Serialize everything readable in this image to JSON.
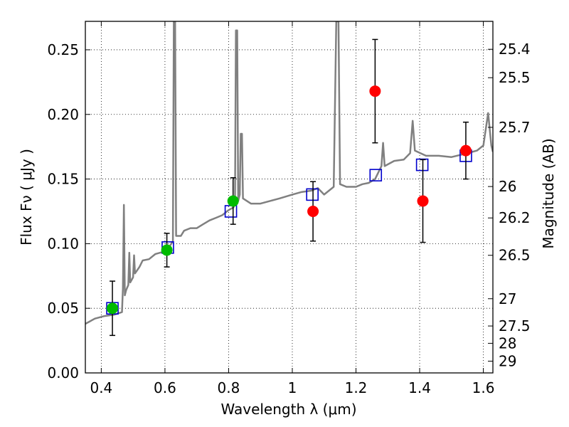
{
  "chart_data": {
    "type": "scatter",
    "title": "",
    "xlabel": "Wavelength  λ (μm)",
    "ylabel": "Flux  Fν  ( μJy )",
    "ylabel_right": "Magnitude (AB)",
    "xlim": [
      0.35,
      1.63
    ],
    "ylim": [
      0.0,
      0.272
    ],
    "grid": true,
    "x_ticks": [
      0.4,
      0.6,
      0.8,
      1,
      1.2,
      1.4,
      1.6
    ],
    "x_tick_labels": [
      "0.4",
      "0.6",
      "0.8",
      "1",
      "1.2",
      "1.4",
      "1.6"
    ],
    "y_ticks": [
      0.0,
      0.05,
      0.1,
      0.15,
      0.2,
      0.25
    ],
    "y_tick_labels": [
      "0.00",
      "0.05",
      "0.10",
      "0.15",
      "0.20",
      "0.25"
    ],
    "right_ticks": [
      {
        "label": "25.4",
        "flux": 0.2504
      },
      {
        "label": "25.5",
        "flux": 0.2284
      },
      {
        "label": "25.7",
        "flux": 0.19
      },
      {
        "label": "26",
        "flux": 0.1442
      },
      {
        "label": "26.2",
        "flux": 0.1199
      },
      {
        "label": "26.5",
        "flux": 0.091
      },
      {
        "label": "27",
        "flux": 0.0574
      },
      {
        "label": "27.5",
        "flux": 0.0363
      },
      {
        "label": "28",
        "flux": 0.0229
      },
      {
        "label": "29",
        "flux": 0.0091
      }
    ],
    "series": [
      {
        "marker": "circle",
        "color": "#00bb00",
        "points": [
          {
            "x": 0.435,
            "y": 0.05,
            "err": 0.021
          },
          {
            "x": 0.606,
            "y": 0.095,
            "err": 0.013
          },
          {
            "x": 0.814,
            "y": 0.133,
            "err": 0.018
          }
        ]
      },
      {
        "marker": "circle",
        "color": "#ff0000",
        "points": [
          {
            "x": 1.065,
            "y": 0.125,
            "err": 0.023
          },
          {
            "x": 1.26,
            "y": 0.218,
            "err": 0.04
          },
          {
            "x": 1.41,
            "y": 0.133,
            "err": 0.032
          },
          {
            "x": 1.545,
            "y": 0.172,
            "err": 0.022
          }
        ]
      },
      {
        "marker": "open-square",
        "color": "#0000cc",
        "points": [
          {
            "x": 0.435,
            "y": 0.05
          },
          {
            "x": 0.609,
            "y": 0.097
          },
          {
            "x": 0.807,
            "y": 0.125
          },
          {
            "x": 1.063,
            "y": 0.138
          },
          {
            "x": 1.262,
            "y": 0.153
          },
          {
            "x": 1.408,
            "y": 0.161
          },
          {
            "x": 1.545,
            "y": 0.168
          }
        ]
      },
      {
        "marker": "line",
        "color": "#808080",
        "points": [
          [
            0.35,
            0.038
          ],
          [
            0.38,
            0.042
          ],
          [
            0.41,
            0.044
          ],
          [
            0.44,
            0.045
          ],
          [
            0.465,
            0.047
          ],
          [
            0.468,
            0.065
          ],
          [
            0.471,
            0.13
          ],
          [
            0.474,
            0.06
          ],
          [
            0.478,
            0.064
          ],
          [
            0.485,
            0.068
          ],
          [
            0.488,
            0.093
          ],
          [
            0.491,
            0.07
          ],
          [
            0.5,
            0.074
          ],
          [
            0.503,
            0.091
          ],
          [
            0.506,
            0.077
          ],
          [
            0.52,
            0.082
          ],
          [
            0.53,
            0.087
          ],
          [
            0.55,
            0.088
          ],
          [
            0.57,
            0.092
          ],
          [
            0.585,
            0.093
          ],
          [
            0.6,
            0.094
          ],
          [
            0.615,
            0.098
          ],
          [
            0.625,
            0.102
          ],
          [
            0.628,
            0.272
          ],
          [
            0.632,
            0.272
          ],
          [
            0.635,
            0.106
          ],
          [
            0.65,
            0.106
          ],
          [
            0.66,
            0.11
          ],
          [
            0.68,
            0.112
          ],
          [
            0.7,
            0.112
          ],
          [
            0.72,
            0.115
          ],
          [
            0.74,
            0.118
          ],
          [
            0.76,
            0.12
          ],
          [
            0.78,
            0.122
          ],
          [
            0.8,
            0.126
          ],
          [
            0.815,
            0.128
          ],
          [
            0.82,
            0.131
          ],
          [
            0.823,
            0.265
          ],
          [
            0.827,
            0.265
          ],
          [
            0.83,
            0.133
          ],
          [
            0.835,
            0.138
          ],
          [
            0.838,
            0.185
          ],
          [
            0.842,
            0.185
          ],
          [
            0.845,
            0.135
          ],
          [
            0.87,
            0.131
          ],
          [
            0.9,
            0.131
          ],
          [
            0.93,
            0.133
          ],
          [
            0.96,
            0.135
          ],
          [
            1.0,
            0.138
          ],
          [
            1.03,
            0.14
          ],
          [
            1.06,
            0.141
          ],
          [
            1.08,
            0.143
          ],
          [
            1.1,
            0.138
          ],
          [
            1.13,
            0.144
          ],
          [
            1.138,
            0.272
          ],
          [
            1.145,
            0.272
          ],
          [
            1.15,
            0.146
          ],
          [
            1.17,
            0.144
          ],
          [
            1.2,
            0.144
          ],
          [
            1.22,
            0.146
          ],
          [
            1.24,
            0.147
          ],
          [
            1.26,
            0.15
          ],
          [
            1.28,
            0.16
          ],
          [
            1.285,
            0.178
          ],
          [
            1.29,
            0.16
          ],
          [
            1.32,
            0.164
          ],
          [
            1.35,
            0.165
          ],
          [
            1.37,
            0.17
          ],
          [
            1.378,
            0.195
          ],
          [
            1.385,
            0.172
          ],
          [
            1.42,
            0.168
          ],
          [
            1.46,
            0.168
          ],
          [
            1.5,
            0.167
          ],
          [
            1.55,
            0.17
          ],
          [
            1.58,
            0.172
          ],
          [
            1.6,
            0.176
          ],
          [
            1.615,
            0.201
          ],
          [
            1.625,
            0.176
          ],
          [
            1.63,
            0.171
          ]
        ]
      }
    ]
  }
}
